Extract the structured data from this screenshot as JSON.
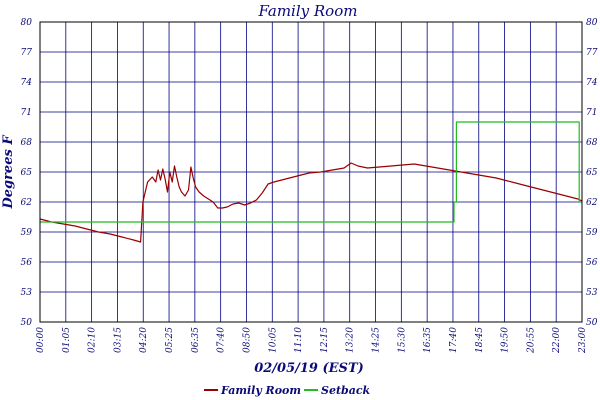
{
  "chart_data": {
    "type": "line",
    "title": "Family Room",
    "xlabel": "02/05/19 (EST)",
    "ylabel": "Degrees F",
    "ylim": [
      50,
      80
    ],
    "y_ticks": [
      "50",
      "53",
      "56",
      "59",
      "62",
      "65",
      "68",
      "71",
      "74",
      "77",
      "80"
    ],
    "x_ticks": [
      "00:00",
      "01:05",
      "02:10",
      "03:15",
      "04:20",
      "05:25",
      "06:35",
      "07:40",
      "08:50",
      "10:05",
      "11:10",
      "12:15",
      "13:20",
      "14:25",
      "15:30",
      "16:35",
      "17:40",
      "18:45",
      "19:50",
      "20:55",
      "22:00",
      "23:00"
    ],
    "x_unit": "hours",
    "xlim": [
      0,
      23.17
    ],
    "grid": true,
    "legend_position": "bottom-center",
    "series": [
      {
        "name": "Family Room",
        "color": "#990000",
        "points": [
          [
            0,
            60.3
          ],
          [
            0.5,
            60.0
          ],
          [
            1.0,
            59.8
          ],
          [
            1.5,
            59.6
          ],
          [
            2.0,
            59.3
          ],
          [
            2.5,
            59.0
          ],
          [
            3.0,
            58.8
          ],
          [
            3.5,
            58.5
          ],
          [
            4.0,
            58.2
          ],
          [
            4.3,
            58.0
          ],
          [
            4.4,
            62.0
          ],
          [
            4.6,
            64.0
          ],
          [
            4.8,
            64.5
          ],
          [
            4.95,
            64.0
          ],
          [
            5.05,
            65.2
          ],
          [
            5.15,
            64.2
          ],
          [
            5.25,
            65.3
          ],
          [
            5.35,
            64.3
          ],
          [
            5.45,
            63.0
          ],
          [
            5.55,
            65.0
          ],
          [
            5.65,
            64.0
          ],
          [
            5.75,
            65.6
          ],
          [
            5.85,
            64.5
          ],
          [
            5.95,
            63.5
          ],
          [
            6.05,
            63.0
          ],
          [
            6.2,
            62.6
          ],
          [
            6.35,
            63.2
          ],
          [
            6.45,
            65.5
          ],
          [
            6.55,
            64.4
          ],
          [
            6.65,
            63.5
          ],
          [
            6.8,
            63.0
          ],
          [
            7.0,
            62.6
          ],
          [
            7.2,
            62.3
          ],
          [
            7.4,
            62.0
          ],
          [
            7.6,
            61.4
          ],
          [
            7.8,
            61.4
          ],
          [
            8.0,
            61.5
          ],
          [
            8.25,
            61.8
          ],
          [
            8.5,
            61.9
          ],
          [
            8.75,
            61.7
          ],
          [
            9.0,
            61.9
          ],
          [
            9.25,
            62.2
          ],
          [
            9.5,
            62.9
          ],
          [
            9.75,
            63.8
          ],
          [
            10.0,
            64.0
          ],
          [
            10.5,
            64.3
          ],
          [
            11.0,
            64.6
          ],
          [
            11.5,
            64.9
          ],
          [
            12.0,
            65.0
          ],
          [
            12.5,
            65.2
          ],
          [
            13.0,
            65.4
          ],
          [
            13.3,
            65.9
          ],
          [
            13.6,
            65.6
          ],
          [
            14.0,
            65.4
          ],
          [
            14.5,
            65.5
          ],
          [
            15.0,
            65.6
          ],
          [
            15.5,
            65.7
          ],
          [
            16.0,
            65.8
          ],
          [
            16.5,
            65.6
          ],
          [
            17.0,
            65.4
          ],
          [
            17.5,
            65.2
          ],
          [
            18.0,
            65.0
          ],
          [
            18.5,
            64.8
          ],
          [
            19.0,
            64.6
          ],
          [
            19.5,
            64.4
          ],
          [
            20.0,
            64.1
          ],
          [
            20.5,
            63.8
          ],
          [
            21.0,
            63.5
          ],
          [
            21.5,
            63.2
          ],
          [
            22.0,
            62.9
          ],
          [
            22.5,
            62.6
          ],
          [
            23.0,
            62.3
          ],
          [
            23.17,
            62.1
          ]
        ]
      },
      {
        "name": "Setback",
        "color": "#22bb22",
        "points": [
          [
            0,
            60.0
          ],
          [
            17.7,
            60.0
          ],
          [
            17.7,
            62.0
          ],
          [
            17.8,
            62.0
          ],
          [
            17.8,
            70.0
          ],
          [
            23.05,
            70.0
          ],
          [
            23.05,
            62.0
          ],
          [
            23.17,
            62.0
          ]
        ]
      }
    ]
  }
}
